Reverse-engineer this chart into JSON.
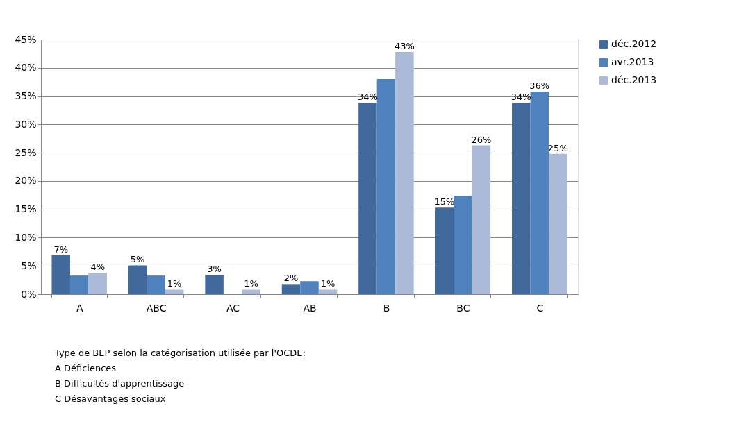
{
  "chart_data": {
    "type": "bar",
    "categories": [
      "A",
      "ABC",
      "AC",
      "AB",
      "B",
      "BC",
      "C"
    ],
    "series": [
      {
        "name": "déc.2012",
        "color": "#41699c",
        "values": [
          6.9,
          5.1,
          3.4,
          1.8,
          33.8,
          15.3,
          33.8
        ],
        "value_labels": [
          "7%",
          "5%",
          "3%",
          "2%",
          "34%",
          "15%",
          "34%"
        ]
      },
      {
        "name": "avr.2013",
        "color": "#4f81bd",
        "values": [
          3.3,
          3.3,
          0,
          2.3,
          38.0,
          17.4,
          35.8
        ],
        "value_labels": [
          null,
          null,
          null,
          null,
          null,
          null,
          "36%"
        ]
      },
      {
        "name": "déc.2013",
        "color": "#aabad7",
        "values": [
          3.8,
          0.8,
          0.8,
          0.8,
          42.8,
          26.3,
          24.8
        ],
        "value_labels": [
          "4%",
          "1%",
          "1%",
          "1%",
          "43%",
          "26%",
          "25%"
        ]
      }
    ],
    "ylim": [
      0,
      45
    ],
    "yticks": [
      {
        "value": 0,
        "label": "0%"
      },
      {
        "value": 5,
        "label": "5%"
      },
      {
        "value": 10,
        "label": "10%"
      },
      {
        "value": 15,
        "label": "15%"
      },
      {
        "value": 20,
        "label": "20%"
      },
      {
        "value": 25,
        "label": "25%"
      },
      {
        "value": 30,
        "label": "30%"
      },
      {
        "value": 35,
        "label": "35%"
      },
      {
        "value": 40,
        "label": "40%"
      },
      {
        "value": 45,
        "label": "45%"
      }
    ],
    "grid": "y",
    "legend": "right",
    "annotations": [
      "Type de BEP selon la catégorisation utilisée par l'OCDE:",
      "A Déficiences",
      "B Difficultés d'apprentissage",
      "C Désavantages sociaux"
    ]
  }
}
